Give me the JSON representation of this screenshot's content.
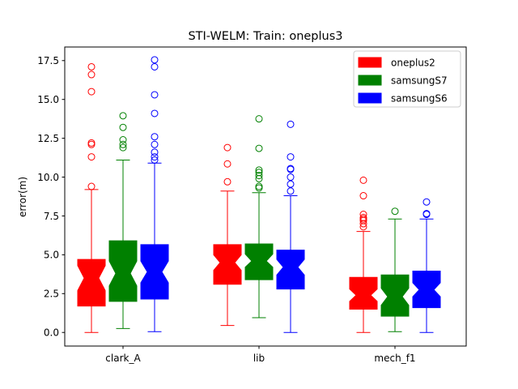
{
  "chart_data": {
    "type": "boxplot",
    "title": "STI-WELM: Train: oneplus3",
    "xlabel": "",
    "ylabel": "error(m)",
    "ylim": [
      -0.875,
      18.375
    ],
    "yticks": [
      "0.0",
      "2.5",
      "5.0",
      "7.5",
      "10.0",
      "12.5",
      "15.0",
      "17.5"
    ],
    "categories": [
      "clark_A",
      "lib",
      "mech_f1"
    ],
    "notched": true,
    "legend_position": "top-right",
    "grid": false,
    "series": [
      {
        "name": "oneplus2",
        "color": "#ff0000",
        "boxes": [
          {
            "whislo": 0.0,
            "q1": 1.7,
            "notch_lo": 2.7,
            "med": 3.5,
            "notch_hi": 4.3,
            "q3": 4.7,
            "whishi": 9.2,
            "fliers": [
              9.4,
              11.3,
              12.1,
              12.2,
              15.5,
              16.6,
              17.1
            ]
          },
          {
            "whislo": 0.45,
            "q1": 3.1,
            "notch_lo": 4.0,
            "med": 4.5,
            "notch_hi": 5.0,
            "q3": 5.65,
            "whishi": 9.1,
            "fliers": [
              9.7,
              10.85,
              11.9
            ]
          },
          {
            "whislo": 0.0,
            "q1": 1.5,
            "notch_lo": 2.0,
            "med": 2.4,
            "notch_hi": 2.8,
            "q3": 3.55,
            "whishi": 6.5,
            "fliers": [
              6.8,
              7.0,
              7.2,
              7.3,
              7.4,
              7.6,
              8.8,
              9.8
            ]
          }
        ]
      },
      {
        "name": "samsungS7",
        "color": "#008000",
        "boxes": [
          {
            "whislo": 0.25,
            "q1": 2.0,
            "notch_lo": 3.0,
            "med": 3.8,
            "notch_hi": 4.6,
            "q3": 5.9,
            "whishi": 11.1,
            "fliers": [
              11.9,
              12.1,
              12.4,
              13.2,
              13.95
            ]
          },
          {
            "whislo": 0.95,
            "q1": 3.4,
            "notch_lo": 4.2,
            "med": 4.6,
            "notch_hi": 5.05,
            "q3": 5.7,
            "whishi": 9.0,
            "fliers": [
              9.3,
              9.4,
              9.9,
              10.1,
              10.3,
              10.45,
              11.85,
              13.75
            ]
          },
          {
            "whislo": 0.05,
            "q1": 1.05,
            "notch_lo": 1.75,
            "med": 2.3,
            "notch_hi": 2.85,
            "q3": 3.7,
            "whishi": 7.3,
            "fliers": [
              7.8
            ]
          }
        ]
      },
      {
        "name": "samsungS6",
        "color": "#0000ff",
        "boxes": [
          {
            "whislo": 0.05,
            "q1": 2.15,
            "notch_lo": 3.2,
            "med": 3.9,
            "notch_hi": 4.6,
            "q3": 5.65,
            "whishi": 10.9,
            "fliers": [
              11.1,
              11.3,
              11.6,
              12.1,
              12.6,
              14.1,
              15.3,
              17.1,
              17.55
            ]
          },
          {
            "whislo": 0.0,
            "q1": 2.8,
            "notch_lo": 3.7,
            "med": 4.2,
            "notch_hi": 4.7,
            "q3": 5.3,
            "whishi": 8.8,
            "fliers": [
              9.1,
              9.55,
              10.0,
              10.5,
              10.55,
              11.3,
              13.4
            ]
          },
          {
            "whislo": 0.0,
            "q1": 1.6,
            "notch_lo": 2.3,
            "med": 2.75,
            "notch_hi": 3.2,
            "q3": 3.95,
            "whishi": 7.3,
            "fliers": [
              7.6,
              7.65,
              8.4
            ]
          }
        ]
      }
    ]
  }
}
